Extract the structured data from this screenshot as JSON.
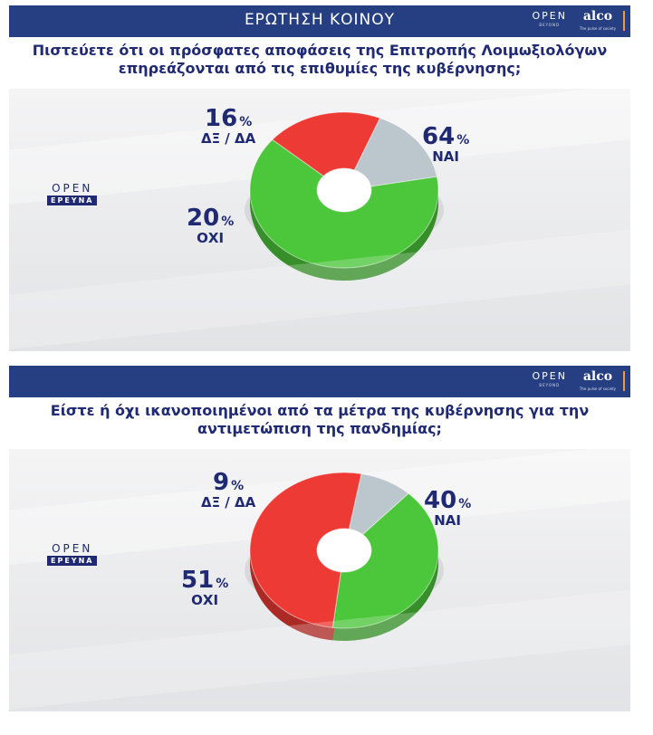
{
  "colors": {
    "header_bg": "#263f83",
    "title_text": "#1f2a73",
    "yes": "#4cc63a",
    "no": "#ee3a34",
    "dk": "#bcc6cd",
    "accent": "#f29a3a"
  },
  "branding": {
    "open": "OPEN",
    "open_sub": "BEYOND",
    "alco": "alco",
    "alco_sub": "The pulse of society",
    "erevna_open": "OPEN",
    "erevna_box": "ΕΡΕΥΝΑ"
  },
  "chart_data": [
    {
      "type": "pie",
      "header": "ΕΡΩΤΗΣΗ ΚΟΙΝΟΥ",
      "title": "Πιστεύετε ότι οι πρόσφατες αποφάσεις της Επιτροπής Λοιμωξιολόγων επηρεάζονται από τις επιθυμίες της κυβέρνησης;",
      "start_angle_deg": -10,
      "slices": [
        {
          "label": "ΝΑΙ",
          "value": 64,
          "value_text": "64",
          "pct": "%",
          "color": "#4cc63a"
        },
        {
          "label": "ΟΧΙ",
          "value": 20,
          "value_text": "20",
          "pct": "%",
          "color": "#ee3a34"
        },
        {
          "label": "ΔΞ / ΔΑ",
          "value": 16,
          "value_text": "16",
          "pct": "%",
          "color": "#bcc6cd"
        }
      ]
    },
    {
      "type": "pie",
      "header": "",
      "title": "Είστε ή όχι ικανοποιημένοι από τα μέτρα της κυβέρνησης για την αντιμετώπιση της πανδημίας;",
      "start_angle_deg": -47,
      "slices": [
        {
          "label": "ΝΑΙ",
          "value": 40,
          "value_text": "40",
          "pct": "%",
          "color": "#4cc63a"
        },
        {
          "label": "ΟΧΙ",
          "value": 51,
          "value_text": "51",
          "pct": "%",
          "color": "#ee3a34"
        },
        {
          "label": "ΔΞ / ΔΑ",
          "value": 9,
          "value_text": "9",
          "pct": "%",
          "color": "#bcc6cd"
        }
      ]
    }
  ]
}
